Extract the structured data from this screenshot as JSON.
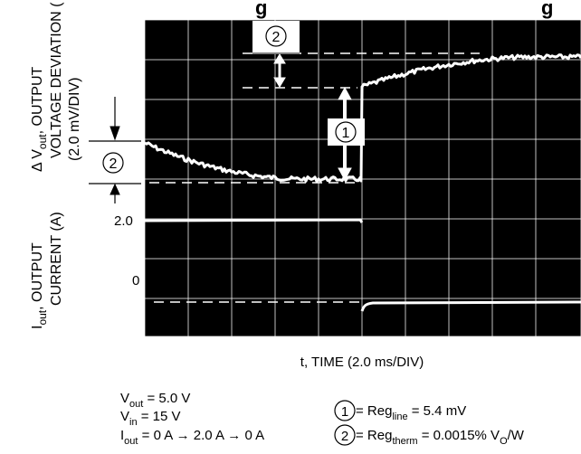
{
  "title_fragment": "g",
  "title_fragment_right": "g",
  "y_label_top": {
    "line1_prefix": "Δ V",
    "line1_sub": "out",
    "line1_suffix": ", OUTPUT",
    "line2": "VOLTAGE DEVIATION (",
    "line3": "(2.0 mV/DIV)"
  },
  "y_label_bottom": {
    "line1_prefix": "I",
    "line1_sub": "out",
    "line1_suffix": ", OUTPUT",
    "line2": "CURRENT (A)"
  },
  "y_ticks": {
    "current_high": "2.0",
    "current_zero": "0"
  },
  "x_label": "t, TIME (2.0 ms/DIV)",
  "markers": {
    "one": "1",
    "two": "2"
  },
  "conditions": {
    "vout_prefix": "V",
    "vout_sub": "out",
    "vout_value": " = 5.0 V",
    "vin_prefix": "V",
    "vin_sub": "in",
    "vin_value": " = 15 V",
    "iout_prefix": "I",
    "iout_sub": "out",
    "iout_value": " = 0 A → 2.0 A → 0 A"
  },
  "legend": {
    "line1_prefix": " = Reg",
    "line1_sub": "line",
    "line1_value": " = 5.4 mV",
    "line2_prefix": " = Reg",
    "line2_sub": "therm",
    "line2_value": " = 0.0015% V",
    "line2_sub2": "O",
    "line2_suffix": "/W"
  },
  "colors": {
    "scope_bg": "#000000",
    "trace": "#ffffff",
    "text": "#000000"
  }
}
